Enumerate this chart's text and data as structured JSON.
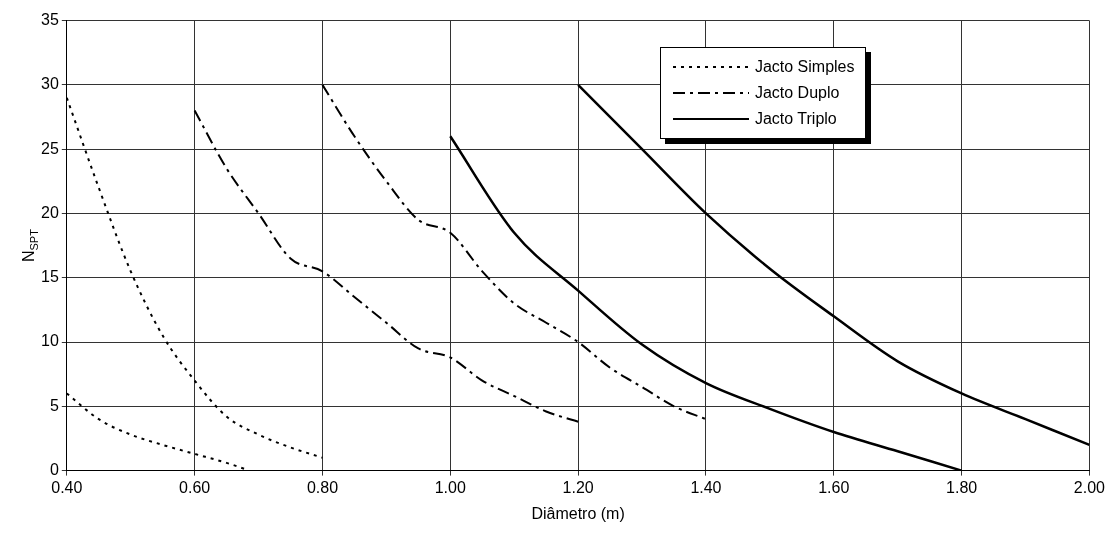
{
  "chart_data": {
    "type": "line",
    "xlabel": "Diâmetro (m)",
    "ylabel": "N$_{SPT}$",
    "xlim": [
      0.4,
      2.0
    ],
    "xticks": [
      {
        "value": 0.4,
        "label": "0.40"
      },
      {
        "value": 0.6,
        "label": "0.60"
      },
      {
        "value": 0.8,
        "label": "0.80"
      },
      {
        "value": 1.0,
        "label": "1.00"
      },
      {
        "value": 1.2,
        "label": "1.20"
      },
      {
        "value": 1.4,
        "label": "1.40"
      },
      {
        "value": 1.6,
        "label": "1.60"
      },
      {
        "value": 1.8,
        "label": "1.80"
      },
      {
        "value": 2.0,
        "label": "2.00"
      }
    ],
    "ylim": [
      0,
      35
    ],
    "yticks": [
      0,
      5,
      10,
      15,
      20,
      25,
      30,
      35
    ],
    "grid": true,
    "legend": "top right",
    "marker": "none",
    "series": [
      {
        "name": "Jacto Simples",
        "color": "#000000",
        "line_style": "dotted",
        "x": [
          0.4,
          0.45,
          0.5,
          0.55,
          0.6,
          0.65,
          0.7,
          0.75,
          0.8
        ],
        "values": [
          29,
          22,
          15.5,
          10.5,
          7,
          4.2,
          2.8,
          1.8,
          1
        ]
      },
      {
        "color": "#000000",
        "line_style": "dotted",
        "x": [
          0.4,
          0.45,
          0.5,
          0.55,
          0.6,
          0.65,
          0.68
        ],
        "values": [
          6,
          4,
          2.8,
          2,
          1.3,
          0.6,
          0.1
        ]
      },
      {
        "name": "Jacto Duplo",
        "color": "#000000",
        "line_style": "dashed",
        "x": [
          0.6,
          0.65,
          0.7,
          0.75,
          0.8,
          0.85,
          0.9,
          0.95,
          1.0,
          1.05,
          1.1,
          1.15,
          1.2
        ],
        "values": [
          28,
          23.5,
          20,
          16.5,
          15.5,
          13.5,
          11.5,
          9.5,
          8.8,
          7,
          5.8,
          4.6,
          3.8
        ]
      },
      {
        "color": "#000000",
        "line_style": "dashed",
        "x": [
          0.8,
          0.85,
          0.9,
          0.95,
          1.0,
          1.05,
          1.1,
          1.15,
          1.2,
          1.25,
          1.3,
          1.35,
          1.4
        ],
        "values": [
          30,
          26,
          22.5,
          19.5,
          18.5,
          15.5,
          13,
          11.5,
          10,
          8,
          6.5,
          5,
          4
        ]
      },
      {
        "name": "Jacto Triplo",
        "color": "#000000",
        "line_style": "solid",
        "x": [
          1.2,
          1.3,
          1.4,
          1.5,
          1.6,
          1.7,
          1.8,
          1.9,
          2.0
        ],
        "values": [
          30,
          25,
          20,
          15.7,
          12,
          8.5,
          6,
          4,
          2
        ]
      },
      {
        "color": "#000000",
        "line_style": "solid",
        "x": [
          1.0,
          1.1,
          1.2,
          1.3,
          1.4,
          1.5,
          1.6,
          1.7,
          1.8
        ],
        "values": [
          26,
          18.5,
          14,
          9.8,
          6.8,
          4.8,
          3,
          1.5,
          0
        ]
      }
    ]
  }
}
